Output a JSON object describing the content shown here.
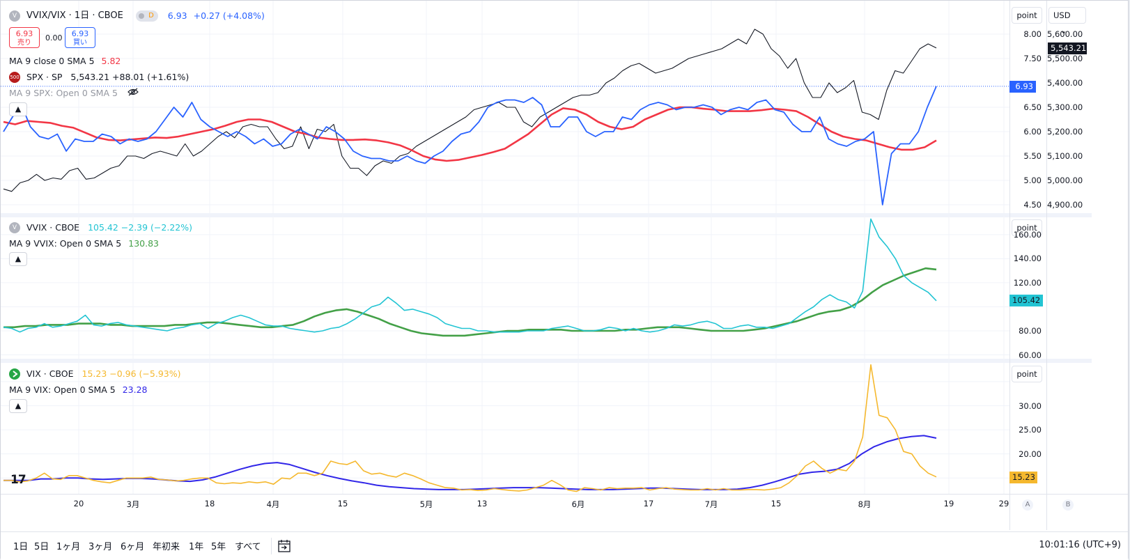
{
  "colors": {
    "ratio_line": "#2962ff",
    "spx_line": "#131722",
    "ratio_ma": "#f23645",
    "vvix_line": "#22c4d3",
    "vvix_ma": "#43a047",
    "vix_line": "#f5b82e",
    "vix_ma": "#3126e8",
    "sell": "#f23645",
    "buy": "#2962ff",
    "grid": "#f0f3fa"
  },
  "pane1": {
    "title_icon_letter": "V",
    "title": "VVIX/VIX · 1日 · CBOE",
    "realtime_badge": "D",
    "last": "6.93",
    "change": "+0.27 (+4.08%)",
    "sell_price": "6.93",
    "sell_label": "売り",
    "spread": "0.00",
    "buy_price": "6.93",
    "buy_label": "買い",
    "ma_label": "MA 9 close 0 SMA 5",
    "ma_value": "5.82",
    "spx_icon_text": "500",
    "spx_label": "SPX · SP",
    "spx_value": "5,543.21 +88.01 (+1.61%)",
    "spx_ma_label": "MA 9 SPX: Open 0 SMA 5",
    "hidden_icon": "eye-off-icon",
    "collapse_icon": "chevron-up-icon",
    "left_axis_ticks": [
      "8.00",
      "7.50",
      "6.50",
      "6.00",
      "5.50",
      "5.00",
      "4.50"
    ],
    "right_axis_ticks": [
      "5,600.00",
      "5,500.00",
      "5,400.00",
      "5,300.00",
      "5,200.00",
      "5,100.00",
      "5,000.00",
      "4,900.00"
    ],
    "spx_tag": "5,543.21",
    "ratio_tag": "6.93",
    "axis_button": "point",
    "currency_button": "USD",
    "currency_arrow": "⌄"
  },
  "pane2": {
    "title_icon_letter": "V",
    "title": "VVIX · CBOE",
    "value": "105.42 −2.39 (−2.22%)",
    "ma_label": "MA 9 VVIX: Open 0 SMA 5",
    "ma_value": "130.83",
    "collapse_icon": "chevron-up-icon",
    "axis_ticks": [
      "160.00",
      "140.00",
      "120.00",
      "80.00",
      "60.00"
    ],
    "tag": "105.42",
    "axis_button": "point"
  },
  "pane3": {
    "title": "VIX · CBOE",
    "value": "15.23 −0.96 (−5.93%)",
    "ma_label": "MA 9 VIX: Open 0 SMA 5",
    "ma_value": "23.28",
    "collapse_icon": "chevron-up-icon",
    "axis_ticks": [
      "30.00",
      "25.00",
      "20.00"
    ],
    "tag": "15.23",
    "axis_button": "point",
    "logo_text": "17"
  },
  "time_axis": {
    "labels": [
      "20",
      "3月",
      "18",
      "4月",
      "15",
      "5月",
      "13",
      "6月",
      "17",
      "7月",
      "15",
      "8月",
      "19",
      "29"
    ],
    "a_button": "A",
    "b_button": "B"
  },
  "bottom_bar": {
    "timeframes": [
      "1日",
      "5日",
      "1ヶ月",
      "3ヶ月",
      "6ヶ月",
      "年初来",
      "1年",
      "5年",
      "すべて"
    ],
    "date_range_icon": "calendar-goto-icon",
    "clock": "10:01:16 (UTC+9)"
  },
  "chart_data": [
    {
      "type": "line",
      "pane": "VVIX/VIX",
      "scale": "left",
      "x_range": [
        "2024-02-12",
        "2024-08-16"
      ],
      "ylim": [
        4.4,
        8.2
      ],
      "series": [
        {
          "name": "VVIX/VIX",
          "values": [
            6.0,
            6.3,
            6.55,
            6.1,
            5.9,
            5.85,
            5.95,
            5.6,
            5.85,
            5.8,
            5.8,
            5.95,
            5.9,
            5.75,
            5.85,
            5.8,
            5.85,
            6.0,
            6.25,
            6.5,
            6.3,
            6.6,
            6.25,
            6.1,
            6.0,
            5.9,
            6.0,
            5.9,
            5.75,
            5.85,
            5.7,
            5.75,
            5.95,
            6.05,
            5.95,
            5.85,
            6.1,
            6.0,
            5.85,
            5.6,
            5.5,
            5.45,
            5.45,
            5.4,
            5.4,
            5.5,
            5.4,
            5.35,
            5.5,
            5.6,
            5.8,
            5.95,
            6.0,
            6.2,
            6.5,
            6.6,
            6.65,
            6.65,
            6.6,
            6.7,
            6.55,
            6.1,
            6.1,
            6.3,
            6.3,
            6.0,
            5.9,
            6.0,
            6.0,
            6.3,
            6.25,
            6.45,
            6.55,
            6.6,
            6.55,
            6.45,
            6.5,
            6.5,
            6.55,
            6.5,
            6.35,
            6.45,
            6.5,
            6.45,
            6.6,
            6.65,
            6.45,
            6.4,
            6.15,
            6.0,
            6.0,
            6.3,
            5.85,
            5.75,
            5.7,
            5.8,
            5.85,
            6.0,
            4.5,
            5.55,
            5.75,
            5.75,
            6.0,
            6.5,
            6.93
          ]
        },
        {
          "name": "MA 9 close 0 SMA 5",
          "values": [
            6.2,
            6.15,
            6.22,
            6.2,
            6.18,
            6.12,
            6.08,
            5.98,
            5.88,
            5.83,
            5.82,
            5.84,
            5.86,
            5.88,
            5.87,
            5.9,
            5.95,
            6.0,
            6.05,
            6.12,
            6.2,
            6.25,
            6.25,
            6.2,
            6.1,
            6.0,
            5.95,
            5.88,
            5.85,
            5.83,
            5.83,
            5.84,
            5.82,
            5.78,
            5.72,
            5.62,
            5.5,
            5.43,
            5.4,
            5.42,
            5.47,
            5.52,
            5.58,
            5.65,
            5.8,
            5.95,
            6.15,
            6.35,
            6.48,
            6.45,
            6.35,
            6.2,
            6.1,
            6.05,
            6.1,
            6.25,
            6.35,
            6.45,
            6.5,
            6.5,
            6.47,
            6.45,
            6.42,
            6.42,
            6.42,
            6.44,
            6.47,
            6.45,
            6.42,
            6.3,
            6.15,
            6.0,
            5.9,
            5.85,
            5.82,
            5.75,
            5.68,
            5.63,
            5.63,
            5.68,
            5.82
          ]
        }
      ]
    },
    {
      "type": "line",
      "pane": "VVIX/VIX",
      "scale": "right",
      "ylim": [
        4880,
        5640
      ],
      "series": [
        {
          "name": "SPX · SP",
          "values": [
            4965,
            4955,
            4990,
            5000,
            5025,
            5000,
            5010,
            5005,
            5040,
            5050,
            5005,
            5010,
            5030,
            5050,
            5060,
            5100,
            5100,
            5090,
            5110,
            5120,
            5110,
            5100,
            5150,
            5100,
            5120,
            5150,
            5180,
            5200,
            5175,
            5220,
            5230,
            5220,
            5220,
            5170,
            5130,
            5140,
            5220,
            5130,
            5210,
            5200,
            5230,
            5100,
            5050,
            5050,
            5020,
            5060,
            5080,
            5070,
            5100,
            5110,
            5140,
            5160,
            5180,
            5200,
            5220,
            5240,
            5260,
            5290,
            5300,
            5310,
            5320,
            5300,
            5300,
            5240,
            5220,
            5260,
            5280,
            5300,
            5320,
            5340,
            5350,
            5350,
            5360,
            5400,
            5420,
            5450,
            5470,
            5480,
            5460,
            5440,
            5450,
            5460,
            5480,
            5500,
            5510,
            5520,
            5530,
            5540,
            5560,
            5580,
            5560,
            5620,
            5600,
            5540,
            5510,
            5460,
            5500,
            5400,
            5340,
            5340,
            5400,
            5360,
            5380,
            5410,
            5280,
            5270,
            5250,
            5370,
            5450,
            5440,
            5490,
            5540,
            5560,
            5543
          ]
        }
      ]
    },
    {
      "type": "line",
      "pane": "VVIX",
      "ylim": [
        58,
        168
      ],
      "series": [
        {
          "name": "VVIX · CBOE",
          "values": [
            83,
            82,
            79,
            82,
            83,
            86,
            83,
            84,
            86,
            88,
            93,
            85,
            84,
            86,
            87,
            85,
            84,
            83,
            82,
            81,
            80,
            82,
            83,
            85,
            86,
            82,
            86,
            88,
            91,
            93,
            91,
            88,
            85,
            84,
            84,
            82,
            81,
            80,
            79,
            80,
            82,
            83,
            86,
            90,
            95,
            100,
            102,
            108,
            103,
            97,
            98,
            96,
            94,
            91,
            86,
            84,
            82,
            82,
            80,
            80,
            79,
            79,
            79,
            79,
            80,
            80,
            80,
            82,
            83,
            84,
            82,
            80,
            80,
            81,
            83,
            82,
            80,
            82,
            80,
            79,
            80,
            82,
            85,
            84,
            85,
            87,
            88,
            86,
            82,
            82,
            84,
            85,
            83,
            83,
            82,
            84,
            86,
            91,
            96,
            100,
            106,
            110,
            106,
            104,
            99,
            113,
            173,
            158,
            150,
            140,
            126,
            120,
            116,
            112,
            105
          ]
        },
        {
          "name": "MA 9 VVIX: Open 0 SMA 5",
          "values": [
            83,
            83,
            84,
            84,
            85,
            85,
            85,
            86,
            86,
            86,
            85,
            85,
            84,
            84,
            84,
            84,
            85,
            85,
            86,
            87,
            87,
            86,
            85,
            84,
            83,
            83,
            84,
            85,
            88,
            92,
            95,
            97,
            98,
            96,
            93,
            90,
            86,
            83,
            80,
            78,
            77,
            76,
            76,
            76,
            77,
            78,
            79,
            80,
            80,
            81,
            81,
            81,
            81,
            80,
            80,
            80,
            80,
            80,
            81,
            81,
            82,
            83,
            83,
            83,
            82,
            81,
            80,
            80,
            80,
            80,
            81,
            82,
            84,
            86,
            88,
            91,
            94,
            96,
            97,
            100,
            105,
            112,
            118,
            122,
            126,
            129,
            132,
            131
          ]
        }
      ]
    },
    {
      "type": "line",
      "pane": "VIX",
      "ylim": [
        12,
        36
      ],
      "series": [
        {
          "name": "VIX · CBOE",
          "values": [
            14.5,
            14.5,
            14.2,
            14.4,
            15.0,
            16.0,
            14.8,
            14.7,
            15.5,
            15.5,
            15.0,
            14.5,
            14.2,
            14.0,
            14.5,
            15.0,
            15.0,
            15.0,
            15.2,
            14.7,
            14.6,
            14.4,
            14.5,
            14.8,
            15.0,
            15.0,
            14.0,
            13.8,
            14.0,
            13.9,
            14.2,
            14.0,
            14.2,
            13.7,
            15.0,
            14.8,
            16.0,
            16.0,
            15.5,
            16.0,
            18.5,
            18.0,
            17.8,
            18.5,
            16.5,
            15.8,
            16.0,
            15.5,
            15.2,
            16.0,
            15.5,
            14.8,
            14.0,
            13.5,
            13.0,
            12.9,
            12.5,
            12.6,
            12.4,
            12.5,
            12.8,
            12.6,
            12.4,
            12.3,
            12.5,
            13.0,
            13.5,
            14.5,
            13.6,
            12.5,
            12.2,
            13.0,
            12.8,
            12.5,
            13.0,
            12.8,
            12.9,
            12.9,
            13.0,
            12.5,
            12.8,
            13.0,
            12.7,
            12.6,
            12.5,
            12.5,
            12.8,
            12.5,
            12.8,
            12.5,
            12.5,
            12.6,
            12.6,
            12.5,
            12.7,
            13.0,
            14.0,
            15.5,
            17.5,
            18.5,
            17.0,
            16.0,
            16.8,
            16.5,
            18.5,
            23.5,
            38.5,
            28.0,
            27.5,
            25.0,
            20.5,
            20.0,
            17.5,
            16.0,
            15.23
          ]
        },
        {
          "name": "MA 9 VIX: Open 0 SMA 5",
          "values": [
            14.5,
            14.5,
            14.5,
            14.8,
            14.8,
            15.0,
            15.0,
            14.8,
            14.7,
            14.8,
            14.9,
            14.9,
            14.8,
            14.6,
            14.4,
            14.3,
            14.6,
            15.2,
            16.0,
            16.8,
            17.5,
            18.0,
            18.2,
            17.8,
            17.0,
            16.2,
            15.5,
            14.9,
            14.4,
            14.0,
            13.5,
            13.2,
            13.0,
            12.8,
            12.7,
            12.6,
            12.6,
            12.6,
            12.7,
            12.8,
            12.9,
            13.0,
            13.0,
            13.0,
            12.9,
            12.8,
            12.7,
            12.6,
            12.6,
            12.6,
            12.7,
            12.8,
            12.9,
            12.9,
            12.8,
            12.7,
            12.6,
            12.6,
            12.6,
            12.7,
            13.0,
            13.5,
            14.2,
            15.0,
            15.8,
            16.2,
            16.4,
            16.8,
            18.0,
            20.0,
            21.5,
            22.5,
            23.2,
            23.6,
            23.8,
            23.28
          ]
        }
      ]
    }
  ]
}
